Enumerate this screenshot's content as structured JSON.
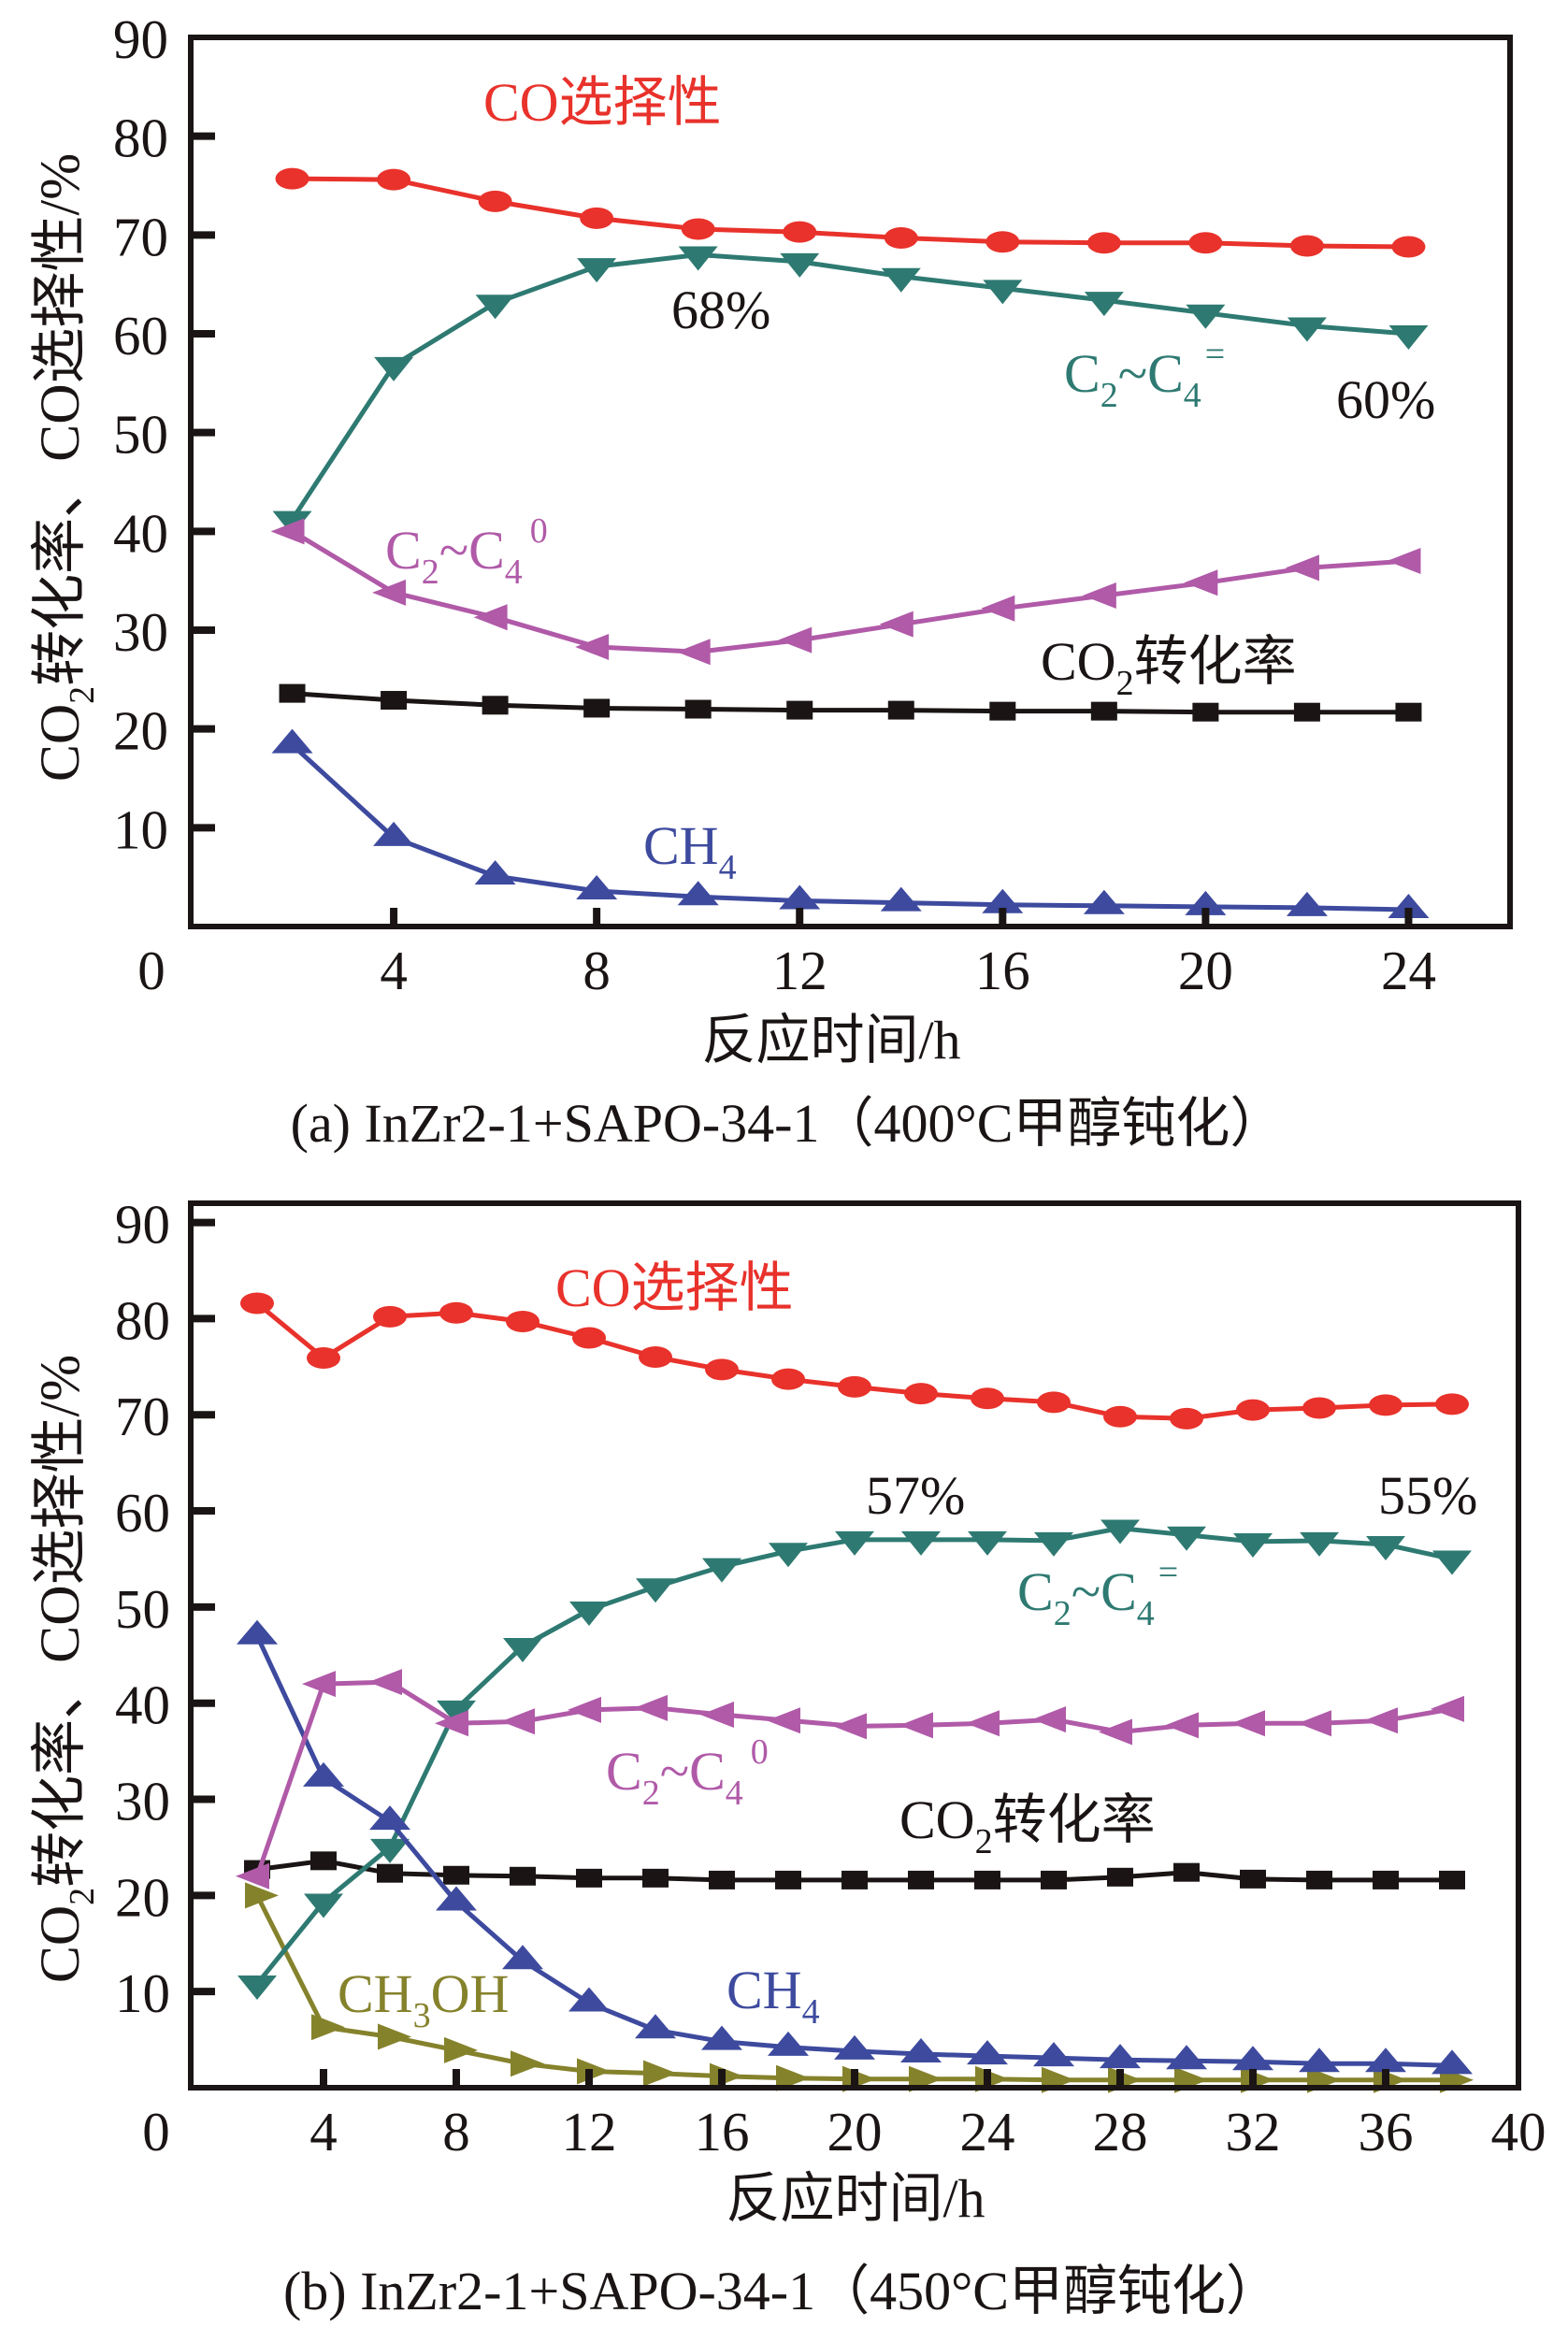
{
  "chart_data": [
    {
      "panel": "a",
      "type": "line",
      "title": "",
      "caption": "(a) InZr2-1+SAPO-34-1（400°C甲醇钝化）",
      "xlabel": "反应时间/h",
      "ylabel": {
        "before_sub": "CO",
        "sub": "2",
        "after_sub": "转化率、CO选择性/%"
      },
      "xlim": [
        0,
        26
      ],
      "ylim": [
        0,
        90
      ],
      "xticks": [
        4,
        8,
        12,
        16,
        20,
        24
      ],
      "yticks": [
        10,
        20,
        30,
        40,
        50,
        60,
        70,
        80,
        90
      ],
      "origin_label": "0",
      "grid": false,
      "legend": "none (inline series labels)",
      "x": [
        2,
        4,
        6,
        8,
        10,
        12,
        14,
        16,
        18,
        20,
        22,
        24
      ],
      "series": [
        {
          "key": "co_selectivity",
          "name": "CO选择性",
          "label_parts": [
            "CO选择性"
          ],
          "color": "#e8322b",
          "marker": "circle",
          "values": [
            75.7,
            75.6,
            73.4,
            71.7,
            70.6,
            70.3,
            69.7,
            69.3,
            69.2,
            69.2,
            68.9,
            68.8
          ]
        },
        {
          "key": "c2c4_olefin",
          "name": "C2~C4=",
          "label_parts": [
            "C",
            "2",
            "~C",
            "4",
            "="
          ],
          "color": "#2e7a72",
          "marker": "triangle-down",
          "values": [
            41.2,
            56.8,
            63.1,
            66.8,
            68.0,
            67.3,
            65.8,
            64.6,
            63.4,
            62.1,
            60.8,
            60.0
          ]
        },
        {
          "key": "c2c4_paraffin",
          "name": "C2~C4 0",
          "label_parts": [
            "C",
            "2",
            "~C",
            "4",
            "0"
          ],
          "color": "#b05aa8",
          "marker": "triangle-left",
          "values": [
            40.0,
            33.8,
            31.3,
            28.3,
            27.8,
            29.0,
            30.6,
            32.2,
            33.5,
            34.8,
            36.3,
            37.0
          ]
        },
        {
          "key": "co2_conversion",
          "name": "CO2转化率",
          "label_parts": [
            "CO",
            "2",
            "转化率"
          ],
          "color": "#1a1514",
          "marker": "square",
          "values": [
            23.6,
            22.9,
            22.4,
            22.1,
            22.0,
            21.9,
            21.9,
            21.8,
            21.8,
            21.7,
            21.7,
            21.7
          ]
        },
        {
          "key": "ch4",
          "name": "CH4",
          "label_parts": [
            "CH",
            "4"
          ],
          "color": "#3d4a9e",
          "marker": "triangle-up",
          "values": [
            18.4,
            9.0,
            5.1,
            3.6,
            3.0,
            2.6,
            2.4,
            2.2,
            2.1,
            2.0,
            1.9,
            1.7
          ]
        }
      ],
      "annotations": [
        {
          "text": "68%",
          "series": "c2c4_olefin",
          "x": 10
        },
        {
          "text": "60%",
          "series": "c2c4_olefin",
          "x": 24
        }
      ]
    },
    {
      "panel": "b",
      "type": "line",
      "title": "",
      "caption": "(b) InZr2-1+SAPO-34-1（450°C甲醇钝化）",
      "xlabel": "反应时间/h",
      "ylabel": {
        "before_sub": "CO",
        "sub": "2",
        "after_sub": "转化率、CO选择性/%"
      },
      "xlim": [
        0,
        40
      ],
      "ylim": [
        0,
        92
      ],
      "xticks": [
        4,
        8,
        12,
        16,
        20,
        24,
        28,
        32,
        36,
        40
      ],
      "yticks": [
        10,
        20,
        30,
        40,
        50,
        60,
        70,
        80,
        90
      ],
      "origin_label": "0",
      "grid": false,
      "legend": "none (inline series labels)",
      "x": [
        2,
        4,
        6,
        8,
        10,
        12,
        14,
        16,
        18,
        20,
        22,
        24,
        26,
        28,
        30,
        32,
        34,
        36,
        38
      ],
      "series": [
        {
          "key": "co_selectivity",
          "name": "CO选择性",
          "label_parts": [
            "CO选择性"
          ],
          "color": "#e8322b",
          "marker": "circle",
          "values": [
            81.6,
            75.9,
            80.2,
            80.6,
            79.7,
            78.0,
            76.0,
            74.7,
            73.7,
            72.9,
            72.2,
            71.7,
            71.3,
            69.8,
            69.6,
            70.5,
            70.7,
            71.0,
            71.1
          ]
        },
        {
          "key": "c2c4_olefin",
          "name": "C2~C4=",
          "label_parts": [
            "C",
            "2",
            "~C",
            "4",
            "="
          ],
          "color": "#2e7a72",
          "marker": "triangle-down",
          "values": [
            10.8,
            19.3,
            25.0,
            39.4,
            45.9,
            49.7,
            52.1,
            54.2,
            55.8,
            57.0,
            57.0,
            57.0,
            56.9,
            58.2,
            57.5,
            56.8,
            56.9,
            56.5,
            55.0
          ]
        },
        {
          "key": "c2c4_paraffin",
          "name": "C2~C4 0",
          "label_parts": [
            "C",
            "2",
            "~C",
            "4",
            "0"
          ],
          "color": "#b05aa8",
          "marker": "triangle-left",
          "values": [
            22.0,
            42.0,
            42.2,
            37.9,
            38.1,
            39.3,
            39.5,
            38.8,
            38.2,
            37.6,
            37.7,
            37.9,
            38.3,
            37.0,
            37.7,
            37.9,
            37.9,
            38.2,
            39.4
          ]
        },
        {
          "key": "co2_conversion",
          "name": "CO2转化率",
          "label_parts": [
            "CO",
            "2",
            "转化率"
          ],
          "color": "#1a1514",
          "marker": "square",
          "values": [
            22.7,
            23.6,
            22.3,
            22.1,
            22.0,
            21.8,
            21.8,
            21.6,
            21.6,
            21.6,
            21.6,
            21.6,
            21.6,
            21.9,
            22.4,
            21.7,
            21.6,
            21.6,
            21.6
          ]
        },
        {
          "key": "ch4",
          "name": "CH4",
          "label_parts": [
            "CH",
            "4"
          ],
          "color": "#3d4a9e",
          "marker": "triangle-up",
          "values": [
            47.0,
            32.2,
            27.7,
            19.3,
            13.2,
            8.8,
            6.0,
            4.8,
            4.2,
            3.8,
            3.5,
            3.3,
            3.1,
            2.9,
            2.8,
            2.7,
            2.5,
            2.5,
            2.3
          ]
        },
        {
          "key": "ch3oh",
          "name": "CH3OH",
          "label_parts": [
            "CH",
            "3",
            "OH"
          ],
          "color": "#85822c",
          "marker": "triangle-right",
          "values": [
            20.0,
            6.3,
            5.3,
            3.9,
            2.5,
            1.7,
            1.5,
            1.2,
            1.0,
            0.9,
            0.9,
            0.9,
            0.8,
            0.8,
            0.8,
            0.8,
            0.8,
            0.8,
            0.8
          ]
        }
      ],
      "annotations": [
        {
          "text": "57%",
          "series": "c2c4_olefin",
          "x": 24
        },
        {
          "text": "55%",
          "series": "c2c4_olefin",
          "x": 38
        }
      ]
    }
  ]
}
